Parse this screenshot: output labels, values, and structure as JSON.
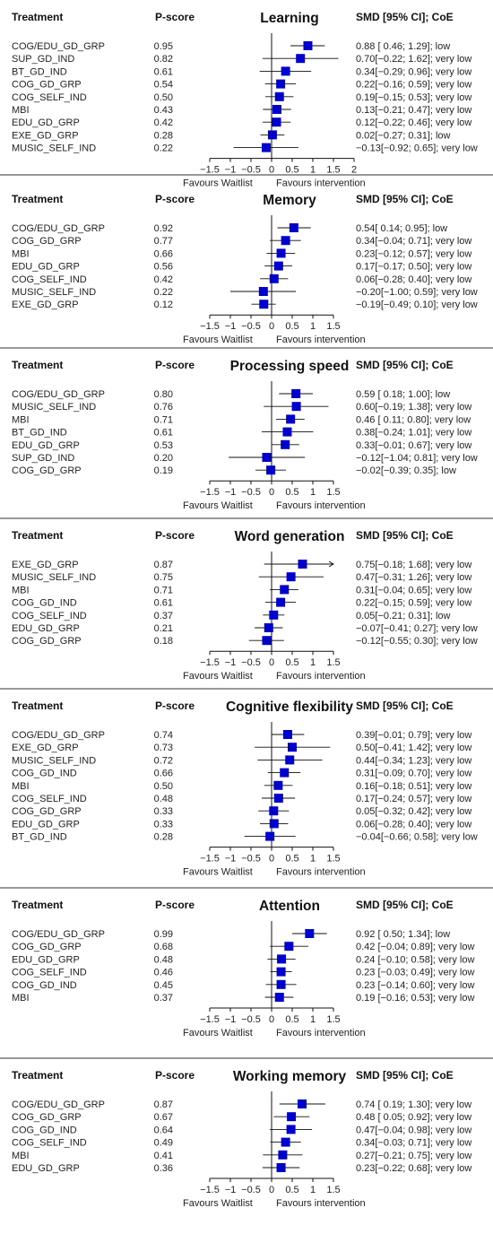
{
  "headers": {
    "treatment": "Treatment",
    "pscore": "P-score",
    "smd": "SMD [95% CI]; CoE"
  },
  "favours": {
    "left": "Favours Waitlist",
    "right": "Favours intervention"
  },
  "marker_color": "#0000cc",
  "chart_data": [
    {
      "type": "forest",
      "title": "Learning",
      "xlim": [
        -1.5,
        2
      ],
      "ticks": [
        -1.5,
        -1,
        -0.5,
        0,
        0.5,
        1,
        1.5,
        2
      ],
      "tick_labels": [
        "−1.5",
        "−1",
        "−0.5",
        "0",
        "0.5",
        "1",
        "1.5",
        "2"
      ],
      "rows": [
        {
          "treatment": "COG/EDU_GD_GRP",
          "pscore": "0.95",
          "smd": 0.88,
          "lo": 0.46,
          "hi": 1.29,
          "ci_text": "0.88 [ 0.46; 1.29]; low"
        },
        {
          "treatment": "SUP_GD_IND",
          "pscore": "0.82",
          "smd": 0.7,
          "lo": -0.22,
          "hi": 1.62,
          "ci_text": "0.70[−0.22; 1.62]; very low"
        },
        {
          "treatment": "BT_GD_IND",
          "pscore": "0.61",
          "smd": 0.34,
          "lo": -0.29,
          "hi": 0.96,
          "ci_text": "0.34[−0.29; 0.96]; very low"
        },
        {
          "treatment": "COG_GD_GRP",
          "pscore": "0.54",
          "smd": 0.22,
          "lo": -0.16,
          "hi": 0.59,
          "ci_text": "0.22[−0.16; 0.59]; very low"
        },
        {
          "treatment": "COG_SELF_IND",
          "pscore": "0.50",
          "smd": 0.19,
          "lo": -0.15,
          "hi": 0.53,
          "ci_text": "0.19[−0.15; 0.53]; very low"
        },
        {
          "treatment": "MBI",
          "pscore": "0.43",
          "smd": 0.13,
          "lo": -0.21,
          "hi": 0.47,
          "ci_text": "0.13[−0.21; 0.47]; very low"
        },
        {
          "treatment": "EDU_GD_GRP",
          "pscore": "0.42",
          "smd": 0.12,
          "lo": -0.22,
          "hi": 0.46,
          "ci_text": "0.12[−0.22; 0.46]; very low"
        },
        {
          "treatment": "EXE_GD_GRP",
          "pscore": "0.28",
          "smd": 0.02,
          "lo": -0.27,
          "hi": 0.31,
          "ci_text": "0.02[−0.27; 0.31]; low"
        },
        {
          "treatment": "MUSIC_SELF_IND",
          "pscore": "0.22",
          "smd": -0.13,
          "lo": -0.92,
          "hi": 0.65,
          "ci_text": "−0.13[−0.92; 0.65]; very low"
        }
      ]
    },
    {
      "type": "forest",
      "title": "Memory",
      "xlim": [
        -1.5,
        1.5
      ],
      "ticks": [
        -1.5,
        -1,
        -0.5,
        0,
        0.5,
        1,
        1.5
      ],
      "tick_labels": [
        "−1.5",
        "−1",
        "−0.5",
        "0",
        "0.5",
        "1",
        "1.5"
      ],
      "rows": [
        {
          "treatment": "COG/EDU_GD_GRP",
          "pscore": "0.92",
          "smd": 0.54,
          "lo": 0.14,
          "hi": 0.95,
          "ci_text": "0.54[ 0.14; 0.95]; low"
        },
        {
          "treatment": "COG_GD_GRP",
          "pscore": "0.77",
          "smd": 0.34,
          "lo": -0.04,
          "hi": 0.71,
          "ci_text": "0.34[−0.04; 0.71]; very low"
        },
        {
          "treatment": "MBI",
          "pscore": "0.66",
          "smd": 0.23,
          "lo": -0.12,
          "hi": 0.57,
          "ci_text": "0.23[−0.12; 0.57]; very low"
        },
        {
          "treatment": "EDU_GD_GRP",
          "pscore": "0.56",
          "smd": 0.17,
          "lo": -0.17,
          "hi": 0.5,
          "ci_text": "0.17[−0.17; 0.50]; very low"
        },
        {
          "treatment": "COG_SELF_IND",
          "pscore": "0.42",
          "smd": 0.06,
          "lo": -0.28,
          "hi": 0.4,
          "ci_text": "0.06[−0.28; 0.40]; very low"
        },
        {
          "treatment": "MUSIC_SELF_IND",
          "pscore": "0.22",
          "smd": -0.2,
          "lo": -1.0,
          "hi": 0.59,
          "ci_text": "−0.20[−1.00; 0.59]; very low"
        },
        {
          "treatment": "EXE_GD_GRP",
          "pscore": "0.12",
          "smd": -0.19,
          "lo": -0.49,
          "hi": 0.1,
          "ci_text": "−0.19[−0.49; 0.10]; very low"
        }
      ]
    },
    {
      "type": "forest",
      "title": "Processing speed",
      "xlim": [
        -1.5,
        1.5
      ],
      "ticks": [
        -1.5,
        -1,
        -0.5,
        0,
        0.5,
        1,
        1.5
      ],
      "tick_labels": [
        "−1.5",
        "−1",
        "−0.5",
        "0",
        "0.5",
        "1",
        "1.5"
      ],
      "rows": [
        {
          "treatment": "COG/EDU_GD_GRP",
          "pscore": "0.80",
          "smd": 0.59,
          "lo": 0.18,
          "hi": 1.0,
          "ci_text": "0.59 [ 0.18; 1.00]; low"
        },
        {
          "treatment": "MUSIC_SELF_IND",
          "pscore": "0.76",
          "smd": 0.6,
          "lo": -0.19,
          "hi": 1.38,
          "ci_text": "0.60[−0.19; 1.38]; very low"
        },
        {
          "treatment": "MBI",
          "pscore": "0.71",
          "smd": 0.46,
          "lo": 0.11,
          "hi": 0.8,
          "ci_text": "0.46 [ 0.11; 0.80]; very low"
        },
        {
          "treatment": "BT_GD_IND",
          "pscore": "0.61",
          "smd": 0.38,
          "lo": -0.24,
          "hi": 1.01,
          "ci_text": "0.38[−0.24; 1.01]; very low"
        },
        {
          "treatment": "EDU_GD_GRP",
          "pscore": "0.53",
          "smd": 0.33,
          "lo": -0.01,
          "hi": 0.67,
          "ci_text": "0.33[−0.01; 0.67]; very low"
        },
        {
          "treatment": "SUP_GD_IND",
          "pscore": "0.20",
          "smd": -0.12,
          "lo": -1.04,
          "hi": 0.81,
          "ci_text": "−0.12[−1.04; 0.81]; very low"
        },
        {
          "treatment": "COG_GD_GRP",
          "pscore": "0.19",
          "smd": -0.02,
          "lo": -0.39,
          "hi": 0.35,
          "ci_text": "−0.02[−0.39; 0.35]; low"
        }
      ]
    },
    {
      "type": "forest",
      "title": "Word generation",
      "xlim": [
        -1.5,
        1.5
      ],
      "ticks": [
        -1.5,
        -1,
        -0.5,
        0,
        0.5,
        1,
        1.5
      ],
      "tick_labels": [
        "−1.5",
        "−1",
        "−0.5",
        "0",
        "0.5",
        "1",
        "1.5"
      ],
      "rows": [
        {
          "treatment": "EXE_GD_GRP",
          "pscore": "0.87",
          "smd": 0.75,
          "lo": -0.18,
          "hi": 1.68,
          "ci_text": "0.75[−0.18; 1.68]; very low"
        },
        {
          "treatment": "MUSIC_SELF_IND",
          "pscore": "0.75",
          "smd": 0.47,
          "lo": -0.31,
          "hi": 1.26,
          "ci_text": "0.47[−0.31; 1.26]; very low"
        },
        {
          "treatment": "MBI",
          "pscore": "0.71",
          "smd": 0.31,
          "lo": -0.04,
          "hi": 0.65,
          "ci_text": "0.31[−0.04; 0.65]; very low"
        },
        {
          "treatment": "COG_GD_IND",
          "pscore": "0.61",
          "smd": 0.22,
          "lo": -0.15,
          "hi": 0.59,
          "ci_text": "0.22[−0.15; 0.59]; very low"
        },
        {
          "treatment": "COG_SELF_IND",
          "pscore": "0.37",
          "smd": 0.05,
          "lo": -0.21,
          "hi": 0.31,
          "ci_text": "0.05[−0.21; 0.31]; low"
        },
        {
          "treatment": "EDU_GD_GRP",
          "pscore": "0.21",
          "smd": -0.07,
          "lo": -0.41,
          "hi": 0.27,
          "ci_text": "−0.07[−0.41; 0.27]; very low"
        },
        {
          "treatment": "COG_GD_GRP",
          "pscore": "0.18",
          "smd": -0.12,
          "lo": -0.55,
          "hi": 0.3,
          "ci_text": "−0.12[−0.55; 0.30]; very low"
        }
      ]
    },
    {
      "type": "forest",
      "title": "Cognitive flexibility",
      "xlim": [
        -1.5,
        1.5
      ],
      "ticks": [
        -1.5,
        -1,
        -0.5,
        0,
        0.5,
        1,
        1.5
      ],
      "tick_labels": [
        "−1.5",
        "−1",
        "−0.5",
        "0",
        "0.5",
        "1",
        "1.5"
      ],
      "rows": [
        {
          "treatment": "COG/EDU_GD_GRP",
          "pscore": "0.74",
          "smd": 0.39,
          "lo": -0.01,
          "hi": 0.79,
          "ci_text": "0.39[−0.01; 0.79]; very low"
        },
        {
          "treatment": "EXE_GD_GRP",
          "pscore": "0.73",
          "smd": 0.5,
          "lo": -0.41,
          "hi": 1.42,
          "ci_text": "0.50[−0.41; 1.42]; very low"
        },
        {
          "treatment": "MUSIC_SELF_IND",
          "pscore": "0.72",
          "smd": 0.44,
          "lo": -0.34,
          "hi": 1.23,
          "ci_text": "0.44[−0.34; 1.23]; very low"
        },
        {
          "treatment": "COG_GD_IND",
          "pscore": "0.66",
          "smd": 0.31,
          "lo": -0.09,
          "hi": 0.7,
          "ci_text": "0.31[−0.09; 0.70]; very low"
        },
        {
          "treatment": "MBI",
          "pscore": "0.50",
          "smd": 0.16,
          "lo": -0.18,
          "hi": 0.51,
          "ci_text": "0.16[−0.18; 0.51]; very low"
        },
        {
          "treatment": "COG_SELF_IND",
          "pscore": "0.48",
          "smd": 0.17,
          "lo": -0.24,
          "hi": 0.57,
          "ci_text": "0.17[−0.24; 0.57]; very low"
        },
        {
          "treatment": "COG_GD_GRP",
          "pscore": "0.33",
          "smd": 0.05,
          "lo": -0.32,
          "hi": 0.42,
          "ci_text": "0.05[−0.32; 0.42]; very low"
        },
        {
          "treatment": "EDU_GD_GRP",
          "pscore": "0.33",
          "smd": 0.06,
          "lo": -0.28,
          "hi": 0.4,
          "ci_text": "0.06[−0.28; 0.40]; very low"
        },
        {
          "treatment": "BT_GD_IND",
          "pscore": "0.28",
          "smd": -0.04,
          "lo": -0.66,
          "hi": 0.58,
          "ci_text": "−0.04[−0.66; 0.58]; very low"
        }
      ]
    },
    {
      "type": "forest",
      "title": "Attention",
      "xlim": [
        -1.5,
        1.5
      ],
      "ticks": [
        -1.5,
        -1,
        -0.5,
        0,
        0.5,
        1,
        1.5
      ],
      "tick_labels": [
        "−1.5",
        "−1",
        "−0.5",
        "0",
        "0.5",
        "1",
        "1.5"
      ],
      "rows": [
        {
          "treatment": "COG/EDU_GD_GRP",
          "pscore": "0.99",
          "smd": 0.92,
          "lo": 0.5,
          "hi": 1.34,
          "ci_text": "0.92 [ 0.50; 1.34]; low"
        },
        {
          "treatment": "COG_GD_GRP",
          "pscore": "0.68",
          "smd": 0.42,
          "lo": -0.04,
          "hi": 0.89,
          "ci_text": "0.42 [−0.04; 0.89]; very low"
        },
        {
          "treatment": "EDU_GD_GRP",
          "pscore": "0.48",
          "smd": 0.24,
          "lo": -0.1,
          "hi": 0.58,
          "ci_text": "0.24 [−0.10; 0.58]; very low"
        },
        {
          "treatment": "COG_SELF_IND",
          "pscore": "0.46",
          "smd": 0.23,
          "lo": -0.03,
          "hi": 0.49,
          "ci_text": "0.23 [−0.03; 0.49]; very low"
        },
        {
          "treatment": "COG_GD_IND",
          "pscore": "0.45",
          "smd": 0.23,
          "lo": -0.14,
          "hi": 0.6,
          "ci_text": "0.23 [−0.14; 0.60]; very low"
        },
        {
          "treatment": "MBI",
          "pscore": "0.37",
          "smd": 0.19,
          "lo": -0.16,
          "hi": 0.53,
          "ci_text": "0.19 [−0.16; 0.53]; very low"
        }
      ]
    },
    {
      "type": "forest",
      "title": "Working memory",
      "xlim": [
        -1.5,
        1.5
      ],
      "ticks": [
        -1.5,
        -1,
        -0.5,
        0,
        0.5,
        1,
        1.5
      ],
      "tick_labels": [
        "−1.5",
        "−1",
        "−0.5",
        "0",
        "0.5",
        "1",
        "1.5"
      ],
      "rows": [
        {
          "treatment": "COG/EDU_GD_GRP",
          "pscore": "0.87",
          "smd": 0.74,
          "lo": 0.19,
          "hi": 1.3,
          "ci_text": "0.74 [ 0.19; 1.30]; very low"
        },
        {
          "treatment": "COG_GD_GRP",
          "pscore": "0.67",
          "smd": 0.48,
          "lo": 0.05,
          "hi": 0.92,
          "ci_text": "0.48 [ 0.05; 0.92]; very low"
        },
        {
          "treatment": "COG_GD_IND",
          "pscore": "0.64",
          "smd": 0.47,
          "lo": -0.04,
          "hi": 0.98,
          "ci_text": "0.47[−0.04; 0.98]; very low"
        },
        {
          "treatment": "COG_SELF_IND",
          "pscore": "0.49",
          "smd": 0.34,
          "lo": -0.03,
          "hi": 0.71,
          "ci_text": "0.34[−0.03; 0.71]; very low"
        },
        {
          "treatment": "MBI",
          "pscore": "0.41",
          "smd": 0.27,
          "lo": -0.21,
          "hi": 0.75,
          "ci_text": "0.27[−0.21; 0.75]; very low"
        },
        {
          "treatment": "EDU_GD_GRP",
          "pscore": "0.36",
          "smd": 0.23,
          "lo": -0.22,
          "hi": 0.68,
          "ci_text": "0.23[−0.22; 0.68]; very low"
        }
      ]
    }
  ]
}
